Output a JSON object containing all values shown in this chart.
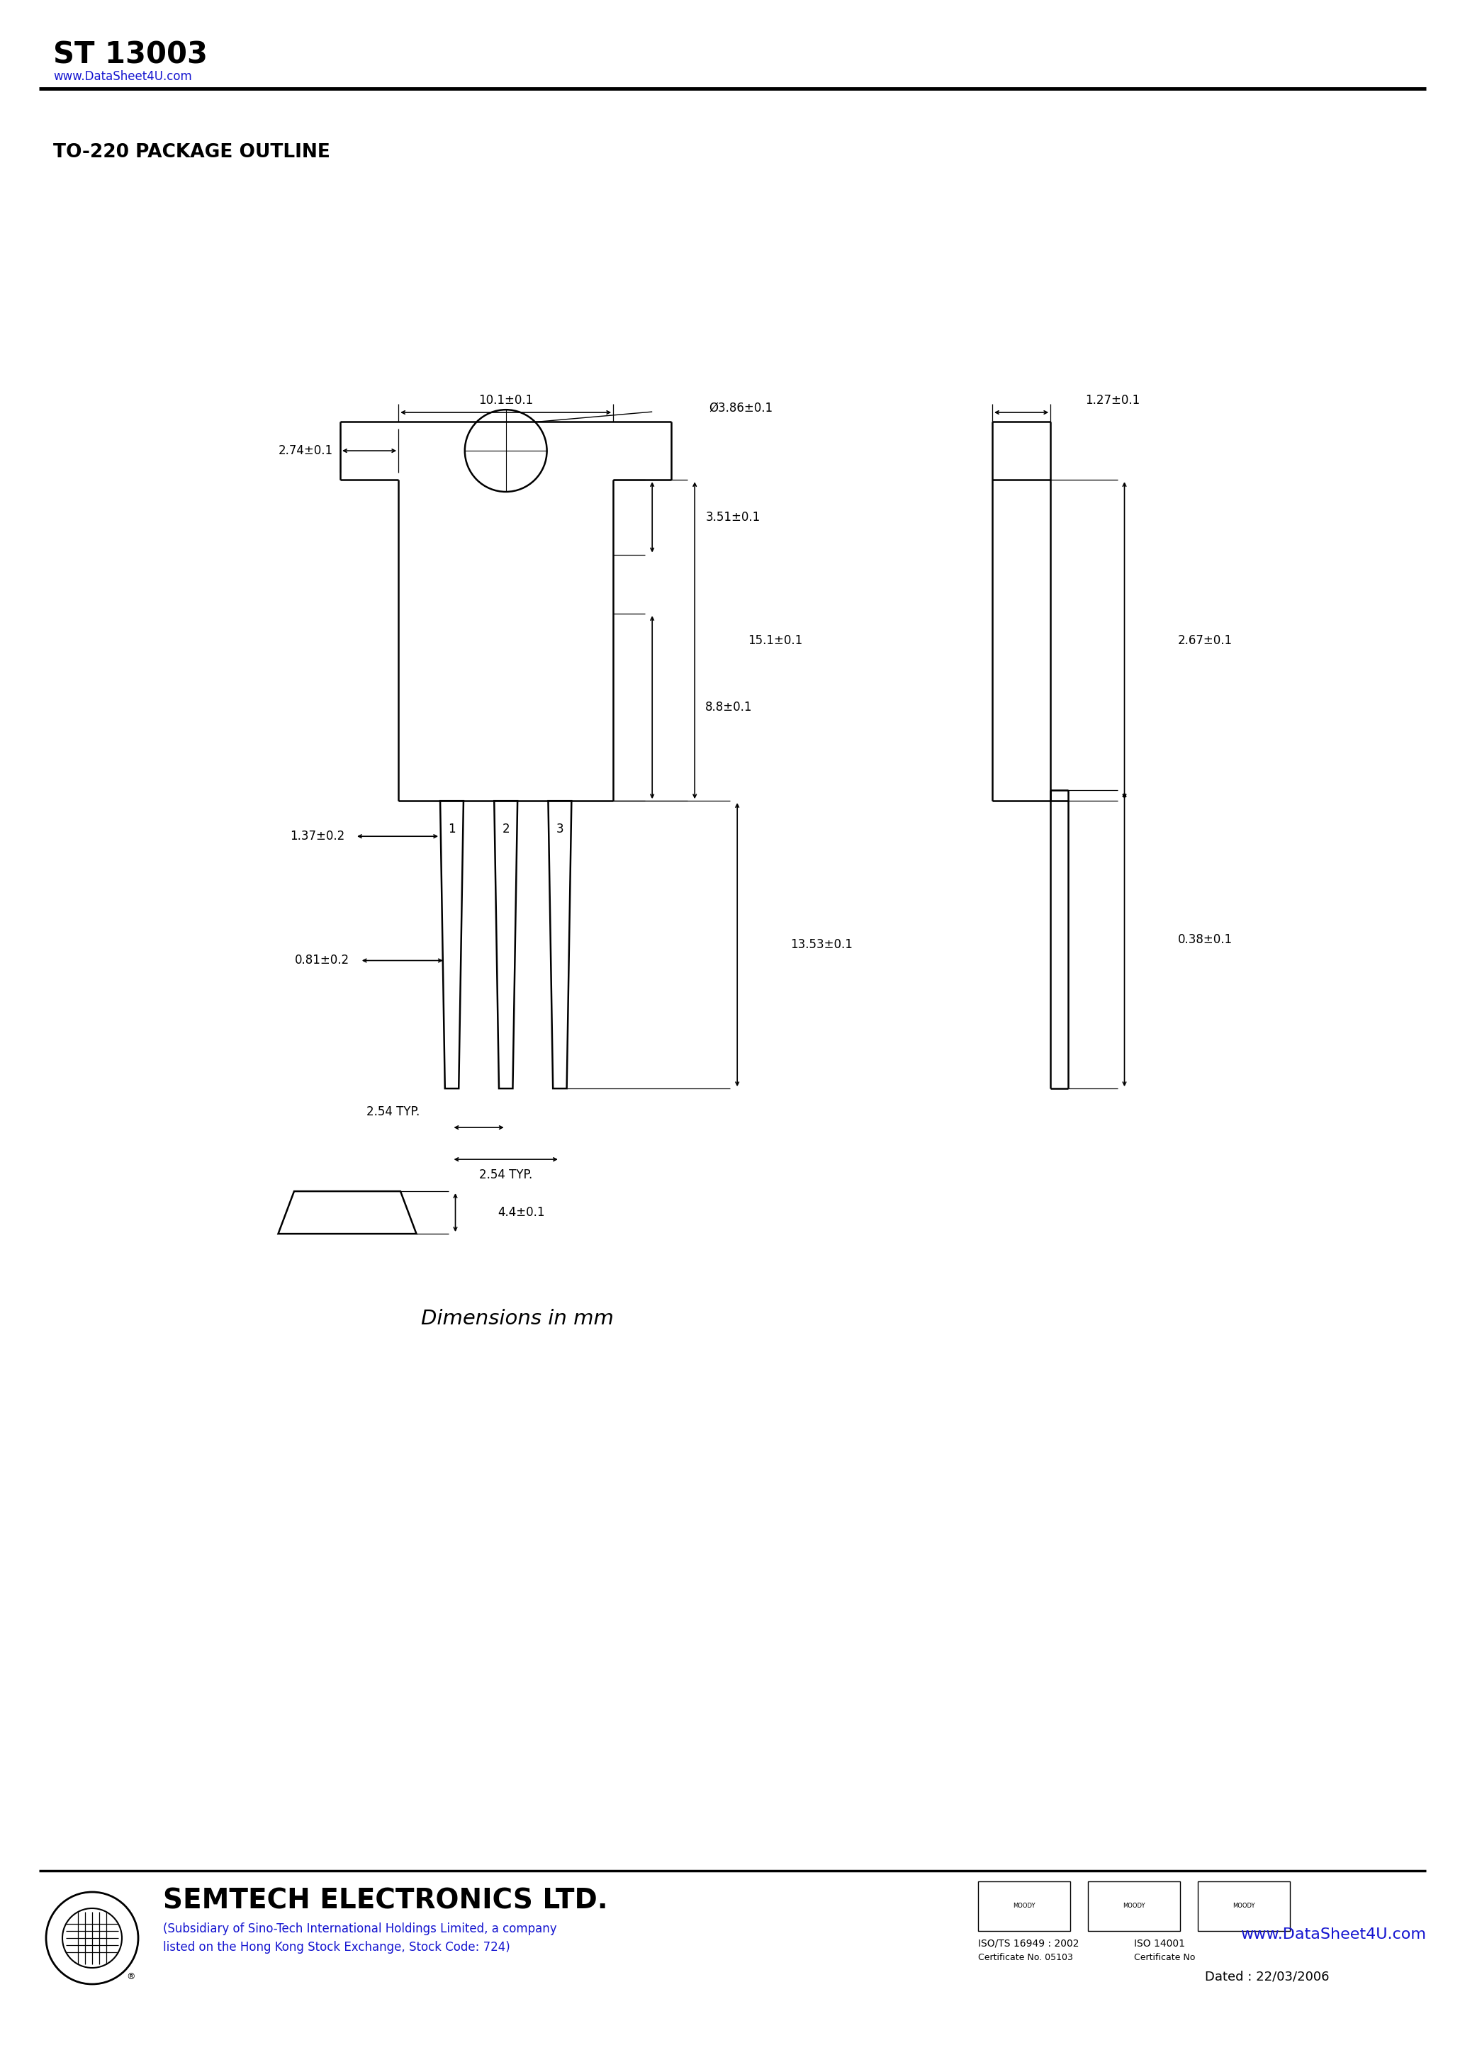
{
  "title": "ST 13003",
  "website": "www.DataSheet4U.com",
  "section_title": "TO-220 PACKAGE OUTLINE",
  "bg_color": "#ffffff",
  "line_color": "#000000",
  "dimensions_label": "Dimensions in mm",
  "footer_company": "SEMTECH ELECTRONICS LTD.",
  "footer_sub": "(Subsidiary of Sino-Tech International Holdings Limited, a company",
  "footer_sub2": "listed on the Hong Kong Stock Exchange, Stock Code: 724)",
  "footer_date": "Dated : 22/03/2006",
  "footer_website": "www.DataSheet4U.com",
  "footer_iso1": "ISO/TS 16949 : 2002",
  "footer_iso2": "ISO 14001",
  "footer_cert1": "Certificate No. 05103",
  "footer_cert2": "Certificate No",
  "dim_10_1": "10.1±0.1",
  "dim_2_74": "2.74±0.1",
  "dim_dia_3_86": "Ø3.86±0.1",
  "dim_15_1": "15.1±0.1",
  "dim_8_8": "8.8±0.1",
  "dim_3_51": "3.51±0.1",
  "dim_1_37": "1.37±0.2",
  "dim_0_81": "0.81±0.2",
  "dim_13_53": "13.53±0.1",
  "dim_2_54_1": "2.54 TYP.",
  "dim_2_54_2": "2.54 TYP.",
  "dim_4_4": "4.4±0.1",
  "dim_1_27": "1.27±0.1",
  "dim_2_67": "2.67±0.1",
  "dim_0_38": "0.38±0.1",
  "pin_labels": [
    "1",
    "2",
    "3"
  ]
}
